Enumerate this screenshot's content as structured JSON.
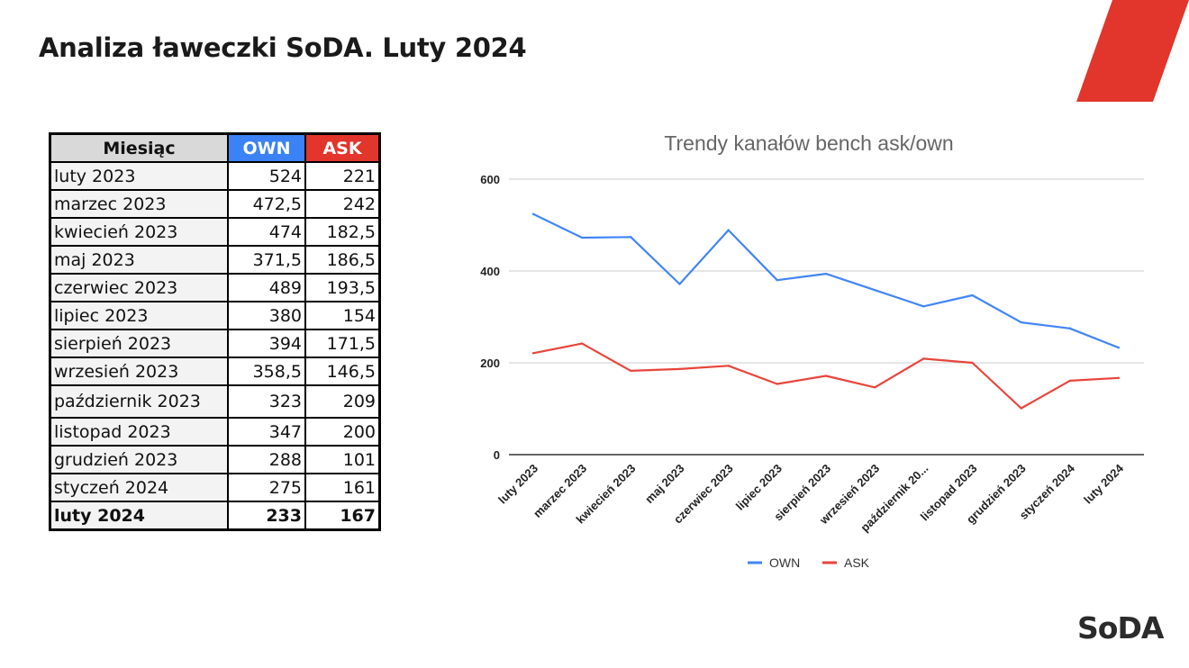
{
  "slide": {
    "title": "Analiza ławeczki SoDA. Luty 2024",
    "logo_text": "SoDA",
    "brand_color": "#e2352b"
  },
  "table": {
    "headers": [
      "Miesiąc",
      "OWN",
      "ASK"
    ],
    "rows": [
      [
        "luty 2023",
        "524",
        "221"
      ],
      [
        "marzec 2023",
        "472,5",
        "242"
      ],
      [
        "kwiecień 2023",
        "474",
        "182,5"
      ],
      [
        "maj 2023",
        "371,5",
        "186,5"
      ],
      [
        "czerwiec 2023",
        "489",
        "193,5"
      ],
      [
        "lipiec 2023",
        "380",
        "154"
      ],
      [
        "sierpień 2023",
        "394",
        "171,5"
      ],
      [
        "wrzesień 2023",
        "358,5",
        "146,5"
      ],
      [
        "październik 2023",
        "323",
        "209"
      ],
      [
        "listopad 2023",
        "347",
        "200"
      ],
      [
        "grudzień 2023",
        "288",
        "101"
      ],
      [
        "styczeń 2024",
        "275",
        "161"
      ],
      [
        "luty 2024",
        "233",
        "167"
      ]
    ]
  },
  "chart_data": {
    "type": "line",
    "title": "Trendy kanałów bench ask/own",
    "categories": [
      "luty 2023",
      "marzec 2023",
      "kwiecień 2023",
      "maj 2023",
      "czerwiec 2023",
      "lipiec 2023",
      "sierpień 2023",
      "wrzesień 2023",
      "październik 20...",
      "listopad 2023",
      "grudzień 2023",
      "styczeń 2024",
      "luty 2024"
    ],
    "series": [
      {
        "name": "OWN",
        "color": "#4285f4",
        "values": [
          524,
          472.5,
          474,
          371.5,
          489,
          380,
          394,
          358.5,
          323,
          347,
          288,
          275,
          233
        ]
      },
      {
        "name": "ASK",
        "color": "#e8453c",
        "values": [
          221,
          242,
          182.5,
          186.5,
          193.5,
          154,
          171.5,
          146.5,
          209,
          200,
          101,
          161,
          167
        ]
      }
    ],
    "yticks": [
      0,
      200,
      400,
      600
    ],
    "ylim": [
      0,
      600
    ],
    "grid": true,
    "legend": "bottom"
  }
}
